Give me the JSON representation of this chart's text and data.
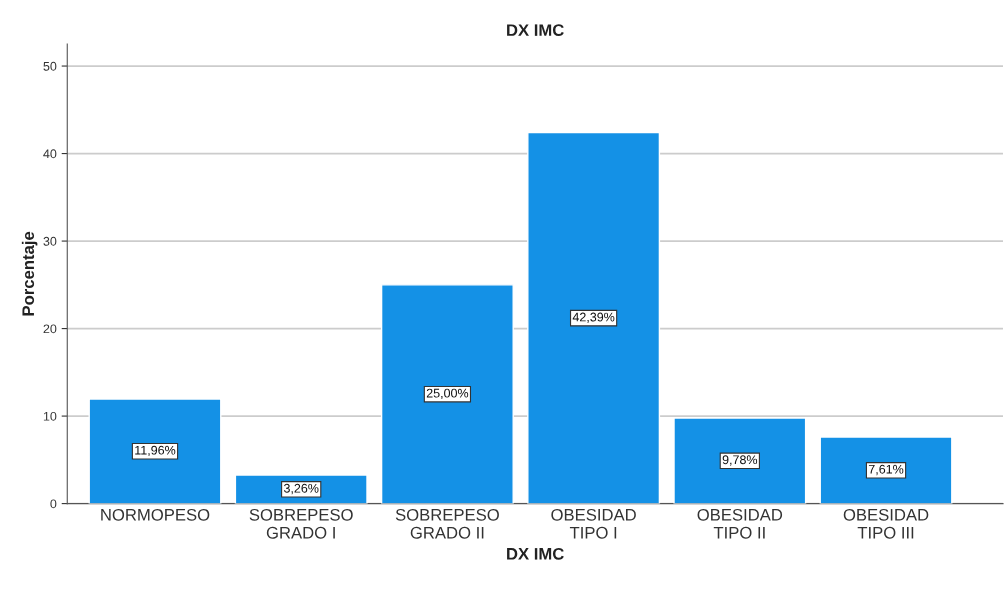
{
  "chart_data": {
    "type": "bar",
    "title": "DX IMC",
    "xlabel": "DX IMC",
    "ylabel": "Porcentaje",
    "categories": [
      "NORMOPESO",
      "SOBREPESO\nGRADO I",
      "SOBREPESO\nGRADO II",
      "OBESIDAD\nTIPO I",
      "OBESIDAD\nTIPO II",
      "OBESIDAD\nTIPO III"
    ],
    "values": [
      11.96,
      3.26,
      25.0,
      42.39,
      9.78,
      7.61
    ],
    "value_labels": [
      "11,96%",
      "3,26%",
      "25,00%",
      "42,39%",
      "9,78%",
      "7,61%"
    ],
    "color": "#1491e6",
    "ylim": [
      0,
      52.5
    ],
    "yticks": [
      0,
      10,
      20,
      30,
      40,
      50
    ],
    "grid": "y",
    "legend": false
  }
}
